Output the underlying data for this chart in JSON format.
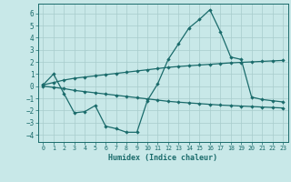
{
  "xlabel": "Humidex (Indice chaleur)",
  "background_color": "#c8e8e8",
  "line_color": "#1a6b6b",
  "grid_color": "#a8cccc",
  "ylim": [
    -4.6,
    6.8
  ],
  "xlim": [
    -0.5,
    23.5
  ],
  "yticks": [
    -4,
    -3,
    -2,
    -1,
    0,
    1,
    2,
    3,
    4,
    5,
    6
  ],
  "xticks": [
    0,
    1,
    2,
    3,
    4,
    5,
    6,
    7,
    8,
    9,
    10,
    11,
    12,
    13,
    14,
    15,
    16,
    17,
    18,
    19,
    20,
    21,
    22,
    23
  ],
  "series1_x": [
    0,
    1,
    2,
    3,
    4,
    5,
    6,
    7,
    8,
    9,
    10,
    11,
    12,
    13,
    14,
    15,
    16,
    17,
    18,
    19,
    20,
    21,
    22,
    23
  ],
  "series1_y": [
    0.1,
    1.0,
    -0.6,
    -2.2,
    -2.1,
    -1.6,
    -3.3,
    -3.5,
    -3.8,
    -3.8,
    -1.2,
    0.2,
    2.2,
    3.5,
    4.8,
    5.5,
    6.3,
    4.5,
    2.4,
    2.2,
    -0.9,
    -1.1,
    -1.2,
    -1.3
  ],
  "series2_x": [
    0,
    1,
    2,
    3,
    4,
    5,
    6,
    7,
    8,
    9,
    10,
    11,
    12,
    13,
    14,
    15,
    16,
    17,
    18,
    19,
    20,
    21,
    22,
    23
  ],
  "series2_y": [
    0.1,
    0.3,
    0.5,
    0.65,
    0.75,
    0.85,
    0.95,
    1.05,
    1.15,
    1.25,
    1.35,
    1.45,
    1.55,
    1.62,
    1.68,
    1.74,
    1.8,
    1.86,
    1.92,
    1.96,
    2.0,
    2.04,
    2.08,
    2.12
  ],
  "series3_x": [
    0,
    1,
    2,
    3,
    4,
    5,
    6,
    7,
    8,
    9,
    10,
    11,
    12,
    13,
    14,
    15,
    16,
    17,
    18,
    19,
    20,
    21,
    22,
    23
  ],
  "series3_y": [
    0.0,
    -0.1,
    -0.2,
    -0.35,
    -0.45,
    -0.55,
    -0.65,
    -0.75,
    -0.85,
    -0.95,
    -1.05,
    -1.15,
    -1.25,
    -1.32,
    -1.38,
    -1.44,
    -1.5,
    -1.56,
    -1.6,
    -1.64,
    -1.68,
    -1.72,
    -1.76,
    -1.8
  ]
}
